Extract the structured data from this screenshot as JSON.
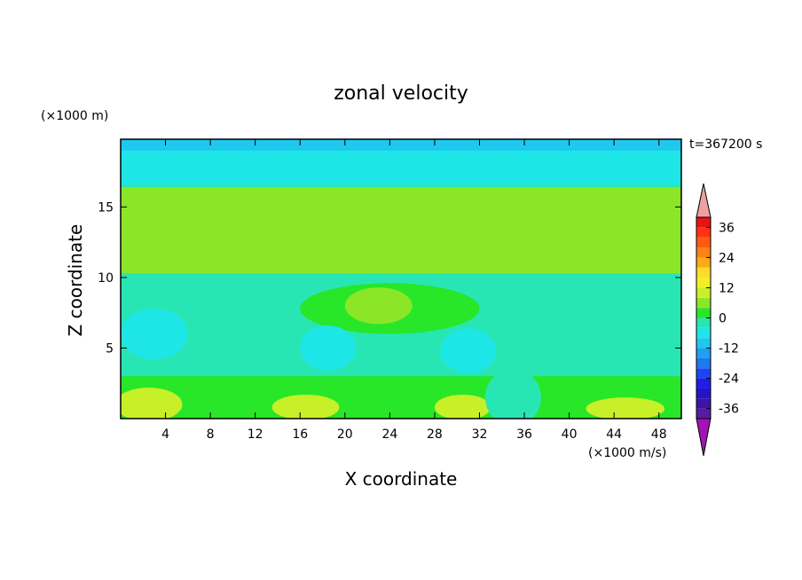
{
  "chart_data": {
    "type": "heatmap",
    "title": "zonal velocity",
    "xlabel": "X coordinate",
    "ylabel": "Z coordinate",
    "y_unit": "(×1000 m)",
    "x_unit": "(×1000 m/s)",
    "time_label": "t=367200 s",
    "xlim": [
      0,
      50
    ],
    "ylim": [
      0,
      19.8
    ],
    "x_ticks": [
      4,
      8,
      12,
      16,
      20,
      24,
      28,
      32,
      36,
      40,
      44,
      48
    ],
    "y_ticks": [
      5,
      10,
      15
    ],
    "colorbar": {
      "ticks": [
        36,
        24,
        12,
        0,
        -12,
        -24,
        -36
      ],
      "levels": [
        {
          "lo": -40,
          "hi": -36,
          "color": "#5a1aa6"
        },
        {
          "lo": -36,
          "hi": -32,
          "color": "#3c14a8"
        },
        {
          "lo": -32,
          "hi": -28,
          "color": "#2414c8"
        },
        {
          "lo": -28,
          "hi": -24,
          "color": "#1e1ee6"
        },
        {
          "lo": -24,
          "hi": -20,
          "color": "#1e46f0"
        },
        {
          "lo": -20,
          "hi": -16,
          "color": "#1e78f0"
        },
        {
          "lo": -16,
          "hi": -12,
          "color": "#1ea0ee"
        },
        {
          "lo": -12,
          "hi": -8,
          "color": "#1ec8ee"
        },
        {
          "lo": -8,
          "hi": -4,
          "color": "#1ee6e6"
        },
        {
          "lo": -4,
          "hi": 0,
          "color": "#28e6b4"
        },
        {
          "lo": 0,
          "hi": 4,
          "color": "#28e628"
        },
        {
          "lo": 4,
          "hi": 8,
          "color": "#8ce628"
        },
        {
          "lo": 8,
          "hi": 12,
          "color": "#c8f028"
        },
        {
          "lo": 12,
          "hi": 16,
          "color": "#f0f028"
        },
        {
          "lo": 16,
          "hi": 20,
          "color": "#ffdc28"
        },
        {
          "lo": 20,
          "hi": 24,
          "color": "#ffaa14"
        },
        {
          "lo": 24,
          "hi": 28,
          "color": "#ff8214"
        },
        {
          "lo": 28,
          "hi": 32,
          "color": "#ff5a14"
        },
        {
          "lo": 32,
          "hi": 36,
          "color": "#ff3214"
        },
        {
          "lo": 36,
          "hi": 40,
          "color": "#e61414"
        }
      ],
      "over_color": "#f0a0a0",
      "under_color": "#a014b4"
    },
    "regions": [
      {
        "name": "background",
        "color": "#28e6b4",
        "shape": "rect",
        "x": [
          0,
          50
        ],
        "y": [
          0,
          19.8
        ]
      },
      {
        "name": "top-layer",
        "color": "#1ee6e6",
        "shape": "rect",
        "x": [
          0,
          50
        ],
        "y": [
          16.6,
          19.8
        ]
      },
      {
        "name": "top-edge",
        "color": "#1ec8ee",
        "shape": "rect",
        "x": [
          0,
          50
        ],
        "y": [
          19.0,
          19.8
        ]
      },
      {
        "name": "upper-green-band",
        "color": "#8ce628",
        "shape": "rect",
        "x": [
          0,
          50
        ],
        "y": [
          10.3,
          16.4
        ]
      },
      {
        "name": "upper-green-core-west",
        "color": "#8ce628",
        "shape": "ellipse",
        "cx": 10,
        "cy": 14.4,
        "rx": 10,
        "ry": 1.6
      },
      {
        "name": "upper-green-core-east",
        "color": "#8ce628",
        "shape": "ellipse",
        "cx": 44,
        "cy": 13.4,
        "rx": 6,
        "ry": 2.0
      },
      {
        "name": "mid-green-patch",
        "color": "#28e628",
        "shape": "ellipse",
        "cx": 24,
        "cy": 7.8,
        "rx": 8,
        "ry": 1.8
      },
      {
        "name": "mid-lightgreen-patch",
        "color": "#8ce628",
        "shape": "ellipse",
        "cx": 23,
        "cy": 8.0,
        "rx": 3,
        "ry": 1.3
      },
      {
        "name": "cyan-blob-1",
        "color": "#1ee6e6",
        "shape": "ellipse",
        "cx": 3,
        "cy": 6.0,
        "rx": 3,
        "ry": 1.8
      },
      {
        "name": "cyan-blob-2",
        "color": "#1ee6e6",
        "shape": "ellipse",
        "cx": 18.5,
        "cy": 5.0,
        "rx": 2.5,
        "ry": 1.6
      },
      {
        "name": "cyan-blob-3",
        "color": "#1ee6e6",
        "shape": "ellipse",
        "cx": 31,
        "cy": 4.8,
        "rx": 2.5,
        "ry": 1.6
      },
      {
        "name": "lower-green-band",
        "color": "#28e628",
        "shape": "rect",
        "x": [
          0,
          50
        ],
        "y": [
          0,
          3.0
        ]
      },
      {
        "name": "bottom-yellow-1",
        "color": "#c8f028",
        "shape": "ellipse",
        "cx": 2.5,
        "cy": 1.0,
        "rx": 3,
        "ry": 1.2
      },
      {
        "name": "bottom-yellow-2",
        "color": "#c8f028",
        "shape": "ellipse",
        "cx": 16.5,
        "cy": 0.8,
        "rx": 3,
        "ry": 0.9
      },
      {
        "name": "bottom-yellow-3",
        "color": "#c8f028",
        "shape": "ellipse",
        "cx": 30.5,
        "cy": 0.8,
        "rx": 2.5,
        "ry": 0.9
      },
      {
        "name": "bottom-yellow-4",
        "color": "#c8f028",
        "shape": "ellipse",
        "cx": 45,
        "cy": 0.7,
        "rx": 3.5,
        "ry": 0.8
      },
      {
        "name": "bottom-cyan-gap",
        "color": "#28e6b4",
        "shape": "ellipse",
        "cx": 35,
        "cy": 1.5,
        "rx": 2.5,
        "ry": 2.0
      }
    ]
  }
}
